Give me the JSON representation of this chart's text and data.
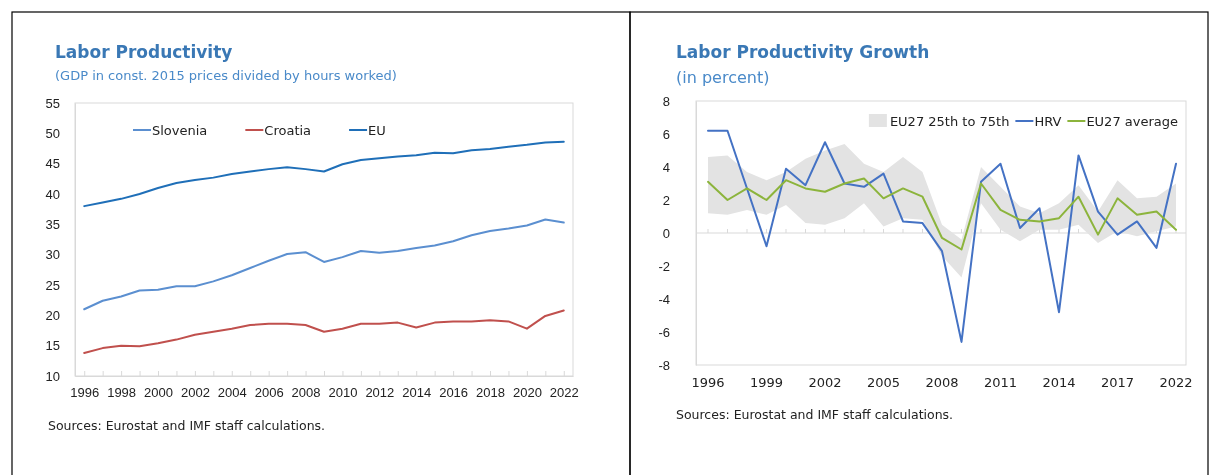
{
  "chart_data": [
    {
      "type": "line",
      "title": "Labor Productivity",
      "subtitle": "(GDP in const. 2015 prices divided by hours worked)",
      "x": [
        1996,
        1997,
        1998,
        1999,
        2000,
        2001,
        2002,
        2003,
        2004,
        2005,
        2006,
        2007,
        2008,
        2009,
        2010,
        2011,
        2012,
        2013,
        2014,
        2015,
        2016,
        2017,
        2018,
        2019,
        2020,
        2021,
        2022
      ],
      "xlim": [
        1995.5,
        2022.5
      ],
      "xticks": [
        1996,
        {
          "value": 1997,
          "label": null
        },
        1998,
        {
          "value": 1999,
          "label": null
        },
        2000,
        {
          "value": 2001,
          "label": null
        },
        2002,
        {
          "value": 2003,
          "label": null
        },
        2004,
        {
          "value": 2005,
          "label": null
        },
        2006,
        {
          "value": 2007,
          "label": null
        },
        2008,
        {
          "value": 2009,
          "label": null
        },
        2010,
        {
          "value": 2011,
          "label": null
        },
        2012,
        {
          "value": 2013,
          "label": null
        },
        2014,
        {
          "value": 2015,
          "label": null
        },
        2016,
        {
          "value": 2017,
          "label": null
        },
        2018,
        {
          "value": 2019,
          "label": null
        },
        2020,
        {
          "value": 2021,
          "label": null
        },
        2022
      ],
      "ylim": [
        10,
        55
      ],
      "yticks": [
        10,
        15,
        20,
        25,
        30,
        35,
        40,
        45,
        50,
        55
      ],
      "legend": "top left",
      "grid": false,
      "line_style": "solid",
      "marker": "none",
      "annotations": [
        "Sources: Eurostat and IMF staff calculations."
      ],
      "series": [
        {
          "name": "Slovenia",
          "color": "#5b8fd0",
          "values": [
            21.0,
            22.4,
            23.1,
            24.1,
            24.2,
            24.8,
            24.8,
            25.6,
            26.6,
            27.8,
            29.0,
            30.1,
            30.4,
            28.8,
            29.6,
            30.6,
            30.3,
            30.6,
            31.1,
            31.5,
            32.2,
            33.2,
            33.9,
            34.3,
            34.8,
            35.8,
            35.3
          ]
        },
        {
          "name": "Croatia",
          "color": "#c0504d",
          "values": [
            13.8,
            14.6,
            15.0,
            14.9,
            15.4,
            16.0,
            16.8,
            17.3,
            17.8,
            18.4,
            18.6,
            18.6,
            18.4,
            17.3,
            17.8,
            18.6,
            18.6,
            18.8,
            18.0,
            18.8,
            19.0,
            19.0,
            19.2,
            19.0,
            17.8,
            19.9,
            20.8
          ]
        },
        {
          "name": "EU",
          "color": "#1f6fb8",
          "values": [
            38.0,
            38.6,
            39.2,
            40.0,
            41.0,
            41.8,
            42.3,
            42.7,
            43.3,
            43.7,
            44.1,
            44.4,
            44.1,
            43.7,
            44.9,
            45.6,
            45.9,
            46.2,
            46.4,
            46.8,
            46.7,
            47.2,
            47.4,
            47.8,
            48.1,
            48.5,
            48.6
          ]
        }
      ]
    },
    {
      "type": "line",
      "title": "Labor Productivity Growth",
      "subtitle": "(in percent)",
      "categories": [
        "1996",
        null,
        null,
        "1999",
        null,
        null,
        "2002",
        null,
        null,
        "2005",
        null,
        null,
        "2008",
        null,
        null,
        "2011",
        null,
        null,
        "2014",
        null,
        null,
        "2017",
        null,
        null,
        "2022"
      ],
      "ylim": [
        -8,
        8
      ],
      "yticks": [
        -8,
        -6,
        -4,
        -2,
        0,
        2,
        4,
        6,
        8
      ],
      "ref_lines": [
        {
          "axis": "y",
          "value": 0,
          "color": "#d9d9d9"
        }
      ],
      "legend": "top right",
      "grid": false,
      "line_style": "solid",
      "marker": "none",
      "annotations": [
        "Sources: Eurostat and IMF staff calculations."
      ],
      "series": [
        {
          "name": "EU27 25th to 75th",
          "type": "area",
          "color": "#e3e3e3",
          "values": [
            null,
            null,
            null,
            null,
            null,
            null,
            null,
            null,
            null,
            null,
            null,
            null,
            null,
            null,
            null,
            null,
            null,
            null,
            null,
            null,
            null,
            null,
            null,
            null,
            null
          ],
          "lower": [
            1.2,
            1.1,
            1.4,
            1.1,
            1.7,
            0.6,
            0.5,
            0.9,
            1.8,
            0.4,
            0.9,
            0.8,
            -1.4,
            -2.7,
            1.8,
            0.2,
            -0.5,
            0.2,
            0.2,
            0.5,
            -0.6,
            0.1,
            -0.2,
            0.1,
            0.4
          ],
          "upper": [
            4.6,
            4.7,
            3.7,
            3.2,
            3.7,
            4.5,
            5.0,
            5.4,
            4.2,
            3.7,
            4.6,
            3.7,
            0.5,
            -0.4,
            4.0,
            2.8,
            1.6,
            1.2,
            1.8,
            2.9,
            1.3,
            3.2,
            2.1,
            2.2,
            3.0
          ]
        },
        {
          "name": "HRV",
          "color": "#4472c4",
          "values": [
            6.2,
            6.2,
            2.7,
            -0.8,
            3.9,
            2.9,
            5.5,
            3.0,
            2.8,
            3.6,
            0.7,
            0.6,
            -1.1,
            -6.6,
            3.1,
            4.2,
            0.3,
            1.5,
            -4.8,
            4.7,
            1.3,
            -0.1,
            0.7,
            -0.9,
            4.2
          ]
        },
        {
          "name": "EU27 average",
          "color": "#8cb43c",
          "values": [
            3.1,
            2.0,
            2.7,
            2.0,
            3.2,
            2.7,
            2.5,
            3.0,
            3.3,
            2.1,
            2.7,
            2.2,
            -0.3,
            -1.0,
            3.0,
            1.4,
            0.8,
            0.7,
            0.9,
            2.2,
            -0.1,
            2.1,
            1.1,
            1.3,
            0.2
          ]
        }
      ]
    }
  ]
}
